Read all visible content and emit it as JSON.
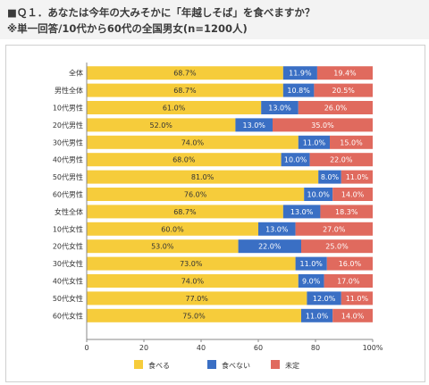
{
  "title": {
    "line1": "■Ｑ１．あなたは今年の大みそかに「年越しそば」を食べますか？",
    "line2": "※単一回答/10代から60代の全国男女(n=1200人)"
  },
  "colors": {
    "taberu": "#f6cc3b",
    "tabenai": "#3a6fc4",
    "mitei": "#e06a5e"
  },
  "chart_data": {
    "type": "bar",
    "orientation": "horizontal",
    "stacked": true,
    "categories": [
      "全体",
      "男性全体",
      "10代男性",
      "20代男性",
      "30代男性",
      "40代男性",
      "50代男性",
      "60代男性",
      "女性全体",
      "10代女性",
      "20代女性",
      "30代女性",
      "40代女性",
      "50代女性",
      "60代女性"
    ],
    "series": [
      {
        "name": "食べる",
        "values": [
          68.7,
          68.7,
          61.0,
          52.0,
          74.0,
          68.0,
          81.0,
          76.0,
          68.7,
          60.0,
          53.0,
          73.0,
          74.0,
          77.0,
          75.0
        ]
      },
      {
        "name": "食べない",
        "values": [
          11.9,
          10.8,
          13.0,
          13.0,
          11.0,
          10.0,
          8.0,
          10.0,
          13.0,
          13.0,
          22.0,
          11.0,
          9.0,
          12.0,
          11.0
        ]
      },
      {
        "name": "未定",
        "values": [
          19.4,
          20.5,
          26.0,
          35.0,
          15.0,
          22.0,
          11.0,
          14.0,
          18.3,
          27.0,
          25.0,
          16.0,
          17.0,
          11.0,
          14.0
        ]
      }
    ],
    "xlim": [
      0,
      100
    ],
    "xticks": [
      "0",
      "20",
      "40",
      "60",
      "80",
      "100%"
    ],
    "legend_position": "bottom",
    "grid": false
  }
}
